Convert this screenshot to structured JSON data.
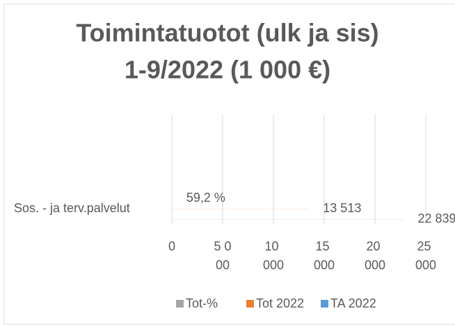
{
  "chart_data": {
    "type": "hbar",
    "title": [
      "Toimintatuotot (ulk ja sis)",
      "1-9/2022 (1 000 €)"
    ],
    "categories": [
      "Sos. - ja terv.palvelut"
    ],
    "series": [
      {
        "name": "Tot-%",
        "color": "#a5a5a5",
        "values": [
          59.2
        ],
        "value_labels": [
          "59,2 %"
        ]
      },
      {
        "name": "Tot 2022",
        "color": "#ed7d31",
        "values": [
          13513
        ],
        "value_labels": [
          "13 513"
        ]
      },
      {
        "name": "TA 2022",
        "color": "#5b9bd5",
        "values": [
          22839
        ],
        "value_labels": [
          "22 839"
        ]
      }
    ],
    "xlim": [
      0,
      30000
    ],
    "xticks": [
      0,
      {
        "value": 5000,
        "label": "5 000"
      },
      {
        "value": 10000,
        "label": "10 000"
      },
      {
        "value": 15000,
        "label": "15 000"
      },
      {
        "value": 20000,
        "label": "20 000"
      },
      {
        "value": 25000,
        "label": "25 000"
      }
    ],
    "grid": true,
    "legend": "bottom"
  }
}
